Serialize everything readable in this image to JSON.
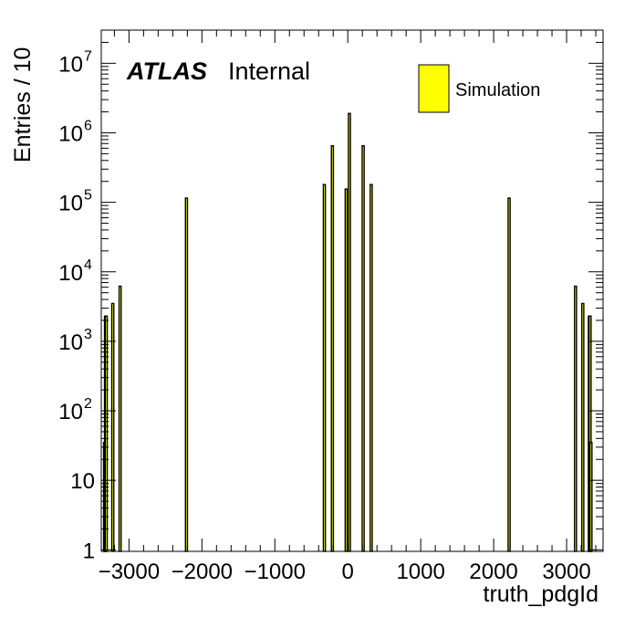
{
  "chart_data": {
    "type": "bar",
    "title": "",
    "xlabel": "truth_pdgId",
    "ylabel": "Entries / 10",
    "log_y": true,
    "xlim": [
      -3380,
      3500
    ],
    "ylim": [
      0.95,
      30000000
    ],
    "x_ticks": [
      -3000,
      -2000,
      -1000,
      0,
      1000,
      2000,
      3000
    ],
    "x_tick_labels": [
      "−3000",
      "−2000",
      "−1000",
      "0",
      "1000",
      "2000",
      "3000"
    ],
    "y_ticks": [
      {
        "value": 1,
        "base": "1",
        "exp": ""
      },
      {
        "value": 10,
        "base": "10",
        "exp": ""
      },
      {
        "value": 100,
        "base": "10",
        "exp": "2"
      },
      {
        "value": 1000,
        "base": "10",
        "exp": "3"
      },
      {
        "value": 10000,
        "base": "10",
        "exp": "4"
      },
      {
        "value": 100000,
        "base": "10",
        "exp": "5"
      },
      {
        "value": 1000000,
        "base": "10",
        "exp": "6"
      },
      {
        "value": 10000000,
        "base": "10",
        "exp": "7"
      }
    ],
    "series": [
      {
        "name": "Simulation",
        "color": "#ffff00",
        "bins": [
          {
            "x": -3334,
            "value": 35
          },
          {
            "x": -3322,
            "value": 2300
          },
          {
            "x": -3312,
            "value": 2300
          },
          {
            "x": -3222,
            "value": 3500
          },
          {
            "x": -3122,
            "value": 6200
          },
          {
            "x": -2212,
            "value": 115000
          },
          {
            "x": -321,
            "value": 180000
          },
          {
            "x": -211,
            "value": 650000
          },
          {
            "x": -22,
            "value": 155000
          },
          {
            "x": 22,
            "value": 1900000
          },
          {
            "x": 211,
            "value": 650000
          },
          {
            "x": 321,
            "value": 180000
          },
          {
            "x": 2212,
            "value": 115000
          },
          {
            "x": 3122,
            "value": 6200
          },
          {
            "x": 3222,
            "value": 3500
          },
          {
            "x": 3312,
            "value": 2300
          },
          {
            "x": 3322,
            "value": 2300
          },
          {
            "x": 3334,
            "value": 35
          }
        ]
      }
    ],
    "legend": {
      "position": "top-right",
      "entries": [
        {
          "label": "Simulation",
          "color": "#ffff00"
        }
      ]
    },
    "annotations": {
      "experiment": "ATLAS",
      "status": "Internal"
    }
  }
}
